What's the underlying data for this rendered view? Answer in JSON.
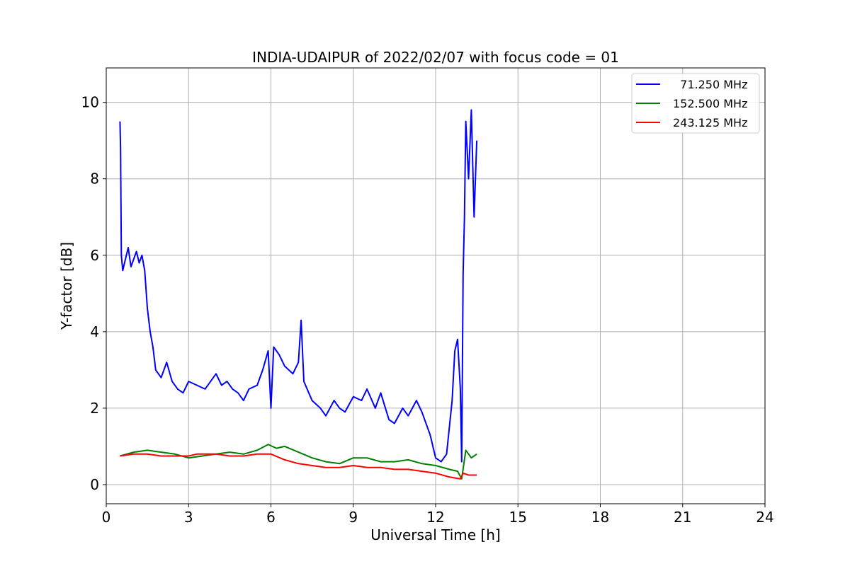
{
  "chart_data": {
    "type": "line",
    "title": "INDIA-UDAIPUR of 2022/02/07 with focus code = 01",
    "xlabel": "Universal Time [h]",
    "ylabel": "Y-factor [dB]",
    "xlim": [
      0,
      24
    ],
    "ylim": [
      -0.5,
      10.9
    ],
    "xticks": [
      0,
      3,
      6,
      9,
      12,
      15,
      18,
      21,
      24
    ],
    "yticks": [
      0,
      2,
      4,
      6,
      8,
      10
    ],
    "grid": true,
    "legend_position": "top-right",
    "series": [
      {
        "name": "  71.250 MHz",
        "color": "#0000ff",
        "x": [
          0.5,
          0.52,
          0.55,
          0.6,
          0.7,
          0.8,
          0.9,
          1.0,
          1.1,
          1.2,
          1.3,
          1.4,
          1.5,
          1.6,
          1.7,
          1.8,
          2.0,
          2.2,
          2.4,
          2.6,
          2.8,
          3.0,
          3.3,
          3.6,
          4.0,
          4.2,
          4.4,
          4.6,
          4.8,
          5.0,
          5.2,
          5.5,
          5.7,
          5.9,
          6.0,
          6.1,
          6.3,
          6.5,
          6.8,
          7.0,
          7.1,
          7.2,
          7.5,
          7.8,
          8.0,
          8.3,
          8.5,
          8.7,
          9.0,
          9.3,
          9.5,
          9.8,
          10.0,
          10.3,
          10.5,
          10.8,
          11.0,
          11.3,
          11.5,
          11.8,
          12.0,
          12.2,
          12.4,
          12.5,
          12.6,
          12.7,
          12.8,
          12.9,
          12.95,
          13.0,
          13.05,
          13.1,
          13.2,
          13.3,
          13.4,
          13.5
        ],
        "y": [
          9.5,
          8.8,
          6.0,
          5.6,
          5.9,
          6.2,
          5.7,
          5.9,
          6.1,
          5.8,
          6.0,
          5.6,
          4.6,
          4.0,
          3.6,
          3.0,
          2.8,
          3.2,
          2.7,
          2.5,
          2.4,
          2.7,
          2.6,
          2.5,
          2.9,
          2.6,
          2.7,
          2.5,
          2.4,
          2.2,
          2.5,
          2.6,
          3.0,
          3.5,
          2.0,
          3.6,
          3.4,
          3.1,
          2.9,
          3.2,
          4.3,
          2.7,
          2.2,
          2.0,
          1.8,
          2.2,
          2.0,
          1.9,
          2.3,
          2.2,
          2.5,
          2.0,
          2.4,
          1.7,
          1.6,
          2.0,
          1.8,
          2.2,
          1.9,
          1.3,
          0.7,
          0.6,
          0.8,
          1.5,
          2.2,
          3.5,
          3.8,
          2.5,
          0.6,
          5.5,
          7.0,
          9.5,
          8.0,
          9.8,
          7.0,
          9.0
        ]
      },
      {
        "name": "152.500 MHz",
        "color": "#008000",
        "x": [
          0.5,
          1.0,
          1.5,
          2.0,
          2.5,
          3.0,
          3.5,
          4.0,
          4.5,
          5.0,
          5.5,
          5.9,
          6.2,
          6.5,
          7.0,
          7.5,
          8.0,
          8.5,
          9.0,
          9.5,
          10.0,
          10.5,
          11.0,
          11.5,
          12.0,
          12.5,
          12.8,
          12.95,
          13.1,
          13.3,
          13.5
        ],
        "y": [
          0.75,
          0.85,
          0.9,
          0.85,
          0.8,
          0.7,
          0.75,
          0.8,
          0.85,
          0.8,
          0.9,
          1.05,
          0.95,
          1.0,
          0.85,
          0.7,
          0.6,
          0.55,
          0.7,
          0.7,
          0.6,
          0.6,
          0.65,
          0.55,
          0.5,
          0.4,
          0.35,
          0.15,
          0.9,
          0.7,
          0.8
        ]
      },
      {
        "name": "243.125 MHz",
        "color": "#ff0000",
        "x": [
          0.5,
          1.0,
          1.5,
          2.0,
          2.5,
          3.0,
          3.3,
          3.5,
          4.0,
          4.5,
          5.0,
          5.5,
          6.0,
          6.5,
          7.0,
          7.5,
          8.0,
          8.5,
          9.0,
          9.5,
          10.0,
          10.5,
          11.0,
          11.5,
          12.0,
          12.5,
          12.9,
          13.0,
          13.2,
          13.5
        ],
        "y": [
          0.75,
          0.8,
          0.8,
          0.75,
          0.75,
          0.75,
          0.8,
          0.8,
          0.8,
          0.75,
          0.75,
          0.8,
          0.8,
          0.65,
          0.55,
          0.5,
          0.45,
          0.45,
          0.5,
          0.45,
          0.45,
          0.4,
          0.4,
          0.35,
          0.3,
          0.2,
          0.15,
          0.3,
          0.25,
          0.25
        ]
      }
    ]
  }
}
